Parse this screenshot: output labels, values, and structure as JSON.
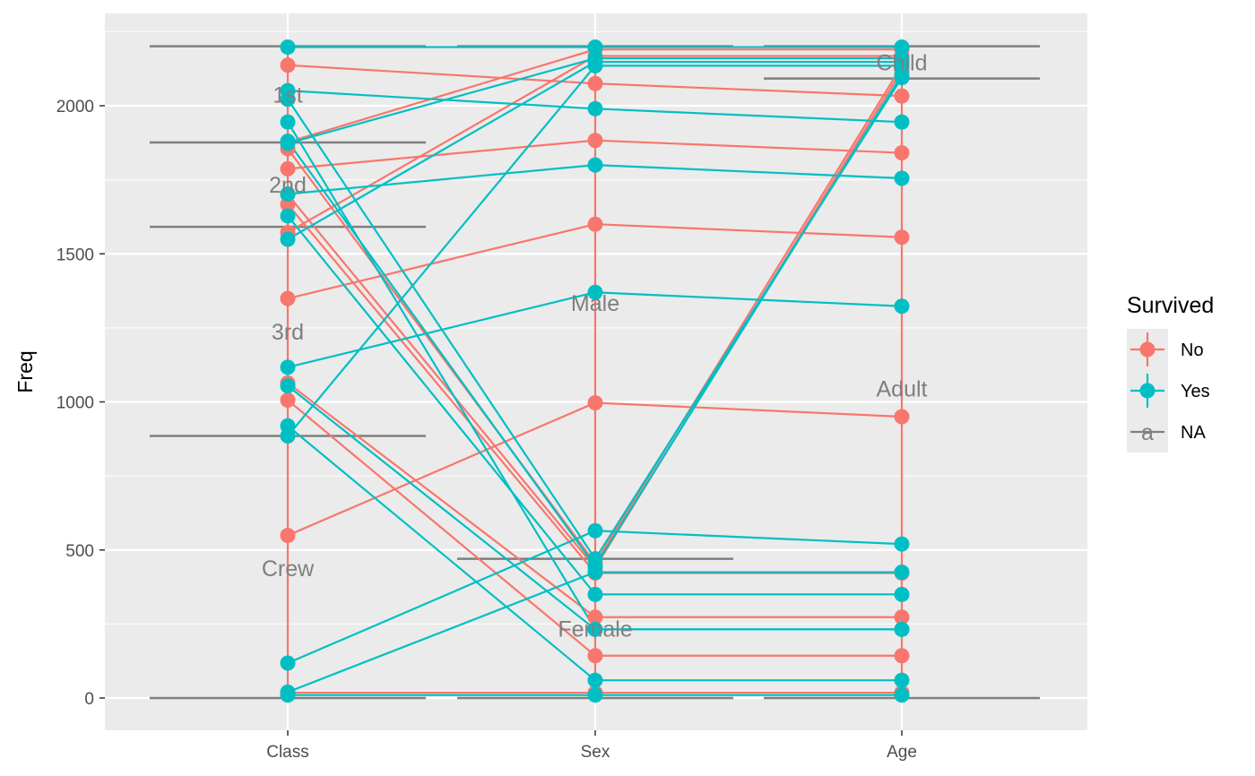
{
  "chart_data": {
    "type": "line",
    "xlabel": "",
    "ylabel": "Freq",
    "categories": [
      "Class",
      "Sex",
      "Age"
    ],
    "ylim": [
      -110,
      2310
    ],
    "y_ticks": [
      0,
      500,
      1000,
      1500,
      2000
    ],
    "y_tick_labels": [
      "0",
      "500",
      "1000",
      "1500",
      "2000"
    ],
    "grid": true,
    "legend": {
      "title": "Survived",
      "position": "right",
      "entries": [
        {
          "label": "No",
          "color": "#F8766D",
          "kind": "point-line"
        },
        {
          "label": "Yes",
          "color": "#00BFC4",
          "kind": "point-line"
        },
        {
          "label": "NA",
          "color": "#7F7F7F",
          "kind": "text-line",
          "glyph": "a"
        }
      ]
    },
    "colors": {
      "No": "#F8766D",
      "Yes": "#00BFC4",
      "NA": "#7F7F7F"
    },
    "stratum_boundaries": {
      "Class": [
        0,
        885,
        1591,
        1876,
        2201
      ],
      "Sex": [
        0,
        470,
        2201
      ],
      "Age": [
        0,
        2092,
        2201
      ]
    },
    "stratum_labels": [
      {
        "axis": "Class",
        "text": "Crew",
        "y": 438
      },
      {
        "axis": "Class",
        "text": "3rd",
        "y": 1238
      },
      {
        "axis": "Class",
        "text": "2nd",
        "y": 1733
      },
      {
        "axis": "Class",
        "text": "1st",
        "y": 2038
      },
      {
        "axis": "Sex",
        "text": "Female",
        "y": 235
      },
      {
        "axis": "Sex",
        "text": "Male",
        "y": 1335
      },
      {
        "axis": "Age",
        "text": "Adult",
        "y": 1046
      },
      {
        "axis": "Age",
        "text": "Child",
        "y": 2146
      }
    ],
    "series": [
      {
        "survived": "No",
        "values": [
          2137,
          2075,
          2033
        ]
      },
      {
        "survived": "No",
        "values": [
          1787,
          1883,
          1841
        ]
      },
      {
        "survived": "No",
        "values": [
          1349,
          1600,
          1556
        ]
      },
      {
        "survived": "No",
        "values": [
          549,
          997,
          950
        ]
      },
      {
        "survived": "No",
        "values": [
          1006,
          143,
          143
        ]
      },
      {
        "survived": "No",
        "values": [
          1064,
          273,
          273
        ]
      },
      {
        "survived": "No",
        "values": [
          1667,
          422,
          422
        ]
      },
      {
        "survived": "No",
        "values": [
          18,
          18,
          18
        ]
      },
      {
        "survived": "No",
        "values": [
          1877,
          2190,
          2190
        ]
      },
      {
        "survived": "No",
        "values": [
          1572,
          2168,
          2168
        ]
      },
      {
        "survived": "No",
        "values": [
          1700,
          440,
          2120
        ]
      },
      {
        "survived": "No",
        "values": [
          1855,
          455,
          2135
        ]
      },
      {
        "survived": "Yes",
        "values": [
          2051,
          1990,
          1945
        ]
      },
      {
        "survived": "Yes",
        "values": [
          1702,
          1800,
          1755
        ]
      },
      {
        "survived": "Yes",
        "values": [
          1117,
          1370,
          1323
        ]
      },
      {
        "survived": "Yes",
        "values": [
          118,
          565,
          520
        ]
      },
      {
        "survived": "Yes",
        "values": [
          20,
          425,
          425
        ]
      },
      {
        "survived": "Yes",
        "values": [
          1628,
          350,
          350
        ]
      },
      {
        "survived": "Yes",
        "values": [
          1945,
          232,
          232
        ]
      },
      {
        "survived": "Yes",
        "values": [
          919,
          60,
          60
        ]
      },
      {
        "survived": "Yes",
        "values": [
          1054,
          232,
          232
        ]
      },
      {
        "survived": "Yes",
        "values": [
          10,
          10,
          10
        ]
      },
      {
        "survived": "Yes",
        "values": [
          2198,
          2198,
          2198
        ]
      },
      {
        "survived": "Yes",
        "values": [
          885,
          2135,
          2135
        ]
      },
      {
        "survived": "Yes",
        "values": [
          1549,
          2148,
          2148
        ]
      },
      {
        "survived": "Yes",
        "values": [
          1873,
          2160,
          2160
        ]
      },
      {
        "survived": "Yes",
        "values": [
          2022,
          470,
          2095
        ]
      },
      {
        "survived": "Yes",
        "values": [
          1880,
          445,
          2105
        ]
      }
    ]
  }
}
